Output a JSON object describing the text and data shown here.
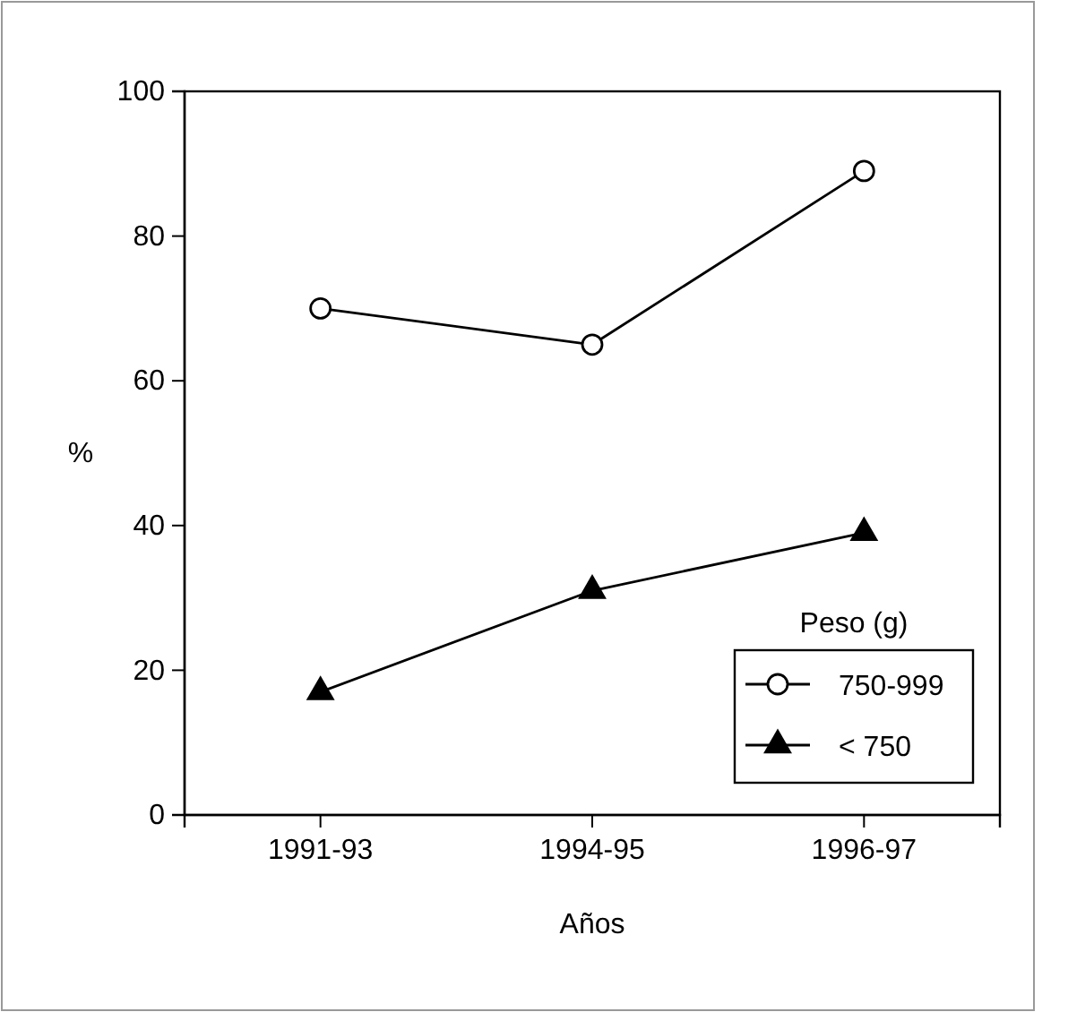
{
  "chart_data": {
    "type": "line",
    "xlabel": "Años",
    "ylabel": "%",
    "legend_title": "Peso (g)",
    "categories": [
      "1991-93",
      "1994-95",
      "1996-97"
    ],
    "series": [
      {
        "name": "750-999",
        "color": "#000000",
        "values": [
          70,
          65,
          89
        ],
        "marker": "circle"
      },
      {
        "name": "< 750",
        "color": "#000000",
        "values": [
          17,
          31,
          39
        ],
        "marker": "triangle"
      }
    ],
    "ylim": [
      0,
      100
    ],
    "yticks": [
      0,
      20,
      40,
      60,
      80,
      100
    ],
    "grid": false,
    "legend": "bottom right",
    "line_style": "solid"
  }
}
